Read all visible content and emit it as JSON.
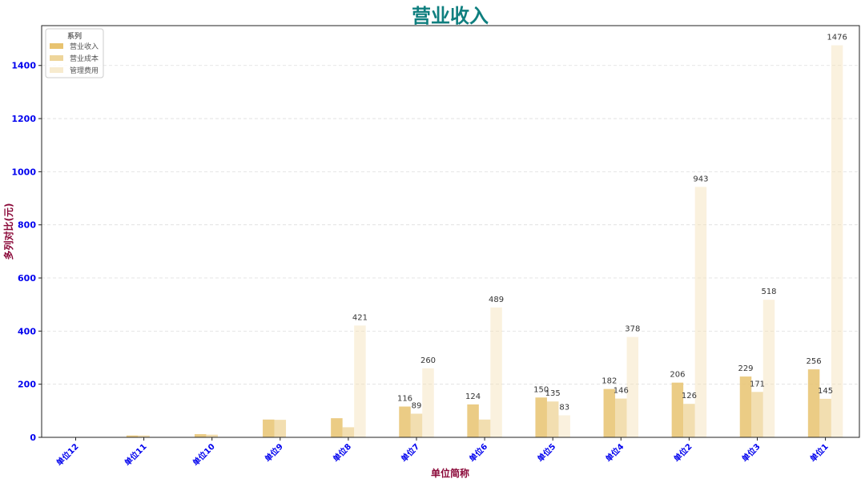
{
  "chart_data": {
    "type": "bar",
    "title": "营业收入",
    "xlabel": "单位简称",
    "ylabel": "多列对比(元)",
    "ylim": [
      0,
      1550
    ],
    "yticks": [
      0,
      200,
      400,
      600,
      800,
      1000,
      1200,
      1400
    ],
    "grid": true,
    "legend_title": "系列",
    "legend_position": "top-left",
    "categories": [
      "单位12",
      "单位11",
      "单位10",
      "单位9",
      "单位8",
      "单位7",
      "单位6",
      "单位5",
      "单位4",
      "单位2",
      "单位3",
      "单位1"
    ],
    "series": [
      {
        "name": "营业收入",
        "color": "#e8c370",
        "opacity": 0.85,
        "values": [
          1,
          7,
          12,
          67,
          72,
          116,
          124,
          150,
          182,
          206,
          229,
          256
        ],
        "labels": [
          null,
          null,
          null,
          null,
          null,
          "116",
          "124",
          "150",
          "182",
          "206",
          "229",
          "256"
        ]
      },
      {
        "name": "营业成本",
        "color": "#ecd08f",
        "opacity": 0.7,
        "values": [
          1,
          7,
          10,
          66,
          38,
          89,
          67,
          135,
          146,
          126,
          171,
          145
        ],
        "labels": [
          null,
          null,
          null,
          null,
          null,
          "89",
          null,
          "135",
          "146",
          "126",
          "171",
          "145"
        ]
      },
      {
        "name": "管理费用",
        "color": "#f3e1b5",
        "opacity": 0.45,
        "values": [
          0,
          0,
          0,
          0,
          421,
          260,
          489,
          83,
          378,
          943,
          518,
          1476
        ],
        "labels": [
          null,
          null,
          null,
          null,
          "421",
          "260",
          "489",
          "83",
          "378",
          "943",
          "518",
          "1476"
        ]
      }
    ]
  }
}
